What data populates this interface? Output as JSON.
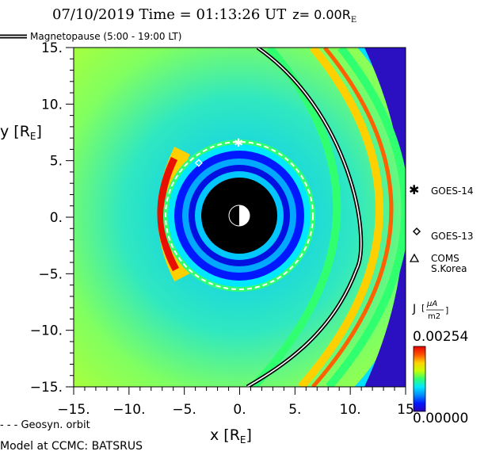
{
  "header": {
    "title_date_time": "07/10/2019 Time = 01:13:26 UT",
    "title_z": "z= 0.00R",
    "title_z_sub": "E"
  },
  "legend_top": {
    "label": "Magnetopause (5:00 - 19:00 LT)"
  },
  "satellites": [
    {
      "name": "GOES-14",
      "marker": "asterisk",
      "x": -0.1,
      "y": 6.6
    },
    {
      "name": "GOES-13",
      "marker": "diamond",
      "x": -3.7,
      "y": 4.8
    },
    {
      "name": "COMS\nS.Korea",
      "marker": "triangle"
    }
  ],
  "satellite_legend": {
    "goes14": "GOES-14",
    "goes13": "GOES-13",
    "coms_line1": "COMS",
    "coms_line2": "S.Korea"
  },
  "colorbar": {
    "label": "J",
    "unit_num": "μA",
    "unit_den": "m2",
    "max": "0.00254",
    "min": "0.00000",
    "colors": [
      "#2a00b8",
      "#0018ff",
      "#008cff",
      "#00e8ff",
      "#30ff70",
      "#c8ff00",
      "#ffd000",
      "#ff5000",
      "#e80000"
    ]
  },
  "bottom": {
    "geosyn_label": "- - - Geosyn. orbit",
    "model_label": "Model at CCMC: BATSRUS"
  },
  "chart_data": {
    "type": "heatmap",
    "title": "07/10/2019 Time = 01:13:26 UT z= 0.00RE",
    "xlabel": "x [R",
    "xlabel_sub": "E",
    "ylabel": "y [R",
    "ylabel_sub": "E",
    "xlim": [
      -15,
      15
    ],
    "ylim": [
      -15,
      15
    ],
    "x_ticks": [
      "-15.",
      "-10.",
      "-5.",
      "0.",
      "5.",
      "10.",
      "15"
    ],
    "y_ticks": [
      "15.",
      "10.",
      "5.",
      "0.",
      "-5.",
      "-10.",
      "-15."
    ],
    "x_tick_values": [
      -15,
      -10,
      -5,
      0,
      5,
      10,
      15
    ],
    "y_tick_values": [
      15,
      10,
      5,
      0,
      -5,
      -10,
      -15
    ],
    "colorbar_range": [
      0.0,
      0.00254
    ],
    "magnetopause_subsolar_x": 11.0,
    "geosynchronous_radius": 6.6,
    "inner_boundary_radius": 3.5
  }
}
